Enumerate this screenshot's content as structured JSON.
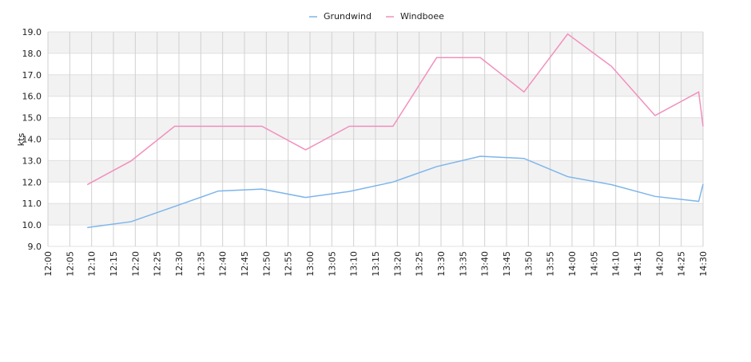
{
  "chart_data": {
    "type": "line",
    "y_label": "kts",
    "x": [
      "12:09",
      "12:19",
      "12:29",
      "12:39",
      "12:49",
      "12:59",
      "13:09",
      "13:19",
      "13:29",
      "13:39",
      "13:49",
      "13:59",
      "14:09",
      "14:19",
      "14:29",
      "14:30"
    ],
    "series": [
      {
        "name": "Grundwind",
        "color": "#7cb5ec",
        "values": [
          9.88,
          10.15,
          10.86,
          11.58,
          11.67,
          11.28,
          11.56,
          12.0,
          12.72,
          13.2,
          13.1,
          12.25,
          11.88,
          11.33,
          11.1,
          11.9
        ]
      },
      {
        "name": "Windboee",
        "color": "#f28fbd",
        "values": [
          11.88,
          12.98,
          14.6,
          14.6,
          14.6,
          13.5,
          14.6,
          14.6,
          17.8,
          17.8,
          16.2,
          18.9,
          17.4,
          15.1,
          16.2,
          14.6
        ]
      }
    ],
    "xlim": [
      "12:00",
      "14:30"
    ],
    "xticks": [
      "12:00",
      "12:05",
      "12:10",
      "12:15",
      "12:20",
      "12:25",
      "12:30",
      "12:35",
      "12:40",
      "12:45",
      "12:50",
      "12:55",
      "13:00",
      "13:05",
      "13:10",
      "13:15",
      "13:20",
      "13:25",
      "13:30",
      "13:35",
      "13:40",
      "13:45",
      "13:50",
      "13:55",
      "14:00",
      "14:05",
      "14:10",
      "14:15",
      "14:20",
      "14:25",
      "14:30"
    ],
    "ylim": [
      9,
      19
    ],
    "yticks": [
      {
        "value": 9,
        "label": "9.0"
      },
      {
        "value": 10,
        "label": "10.0"
      },
      {
        "value": 11,
        "label": "11.0"
      },
      {
        "value": 12,
        "label": "12.0"
      },
      {
        "value": 13,
        "label": "13.0"
      },
      {
        "value": 14,
        "label": "14.0"
      },
      {
        "value": 15,
        "label": "15.0"
      },
      {
        "value": 16,
        "label": "16.0"
      },
      {
        "value": 17,
        "label": "17.0"
      },
      {
        "value": 18,
        "label": "18.0"
      },
      {
        "value": 19,
        "label": "19.0"
      }
    ],
    "grid": true,
    "legend": "top"
  }
}
